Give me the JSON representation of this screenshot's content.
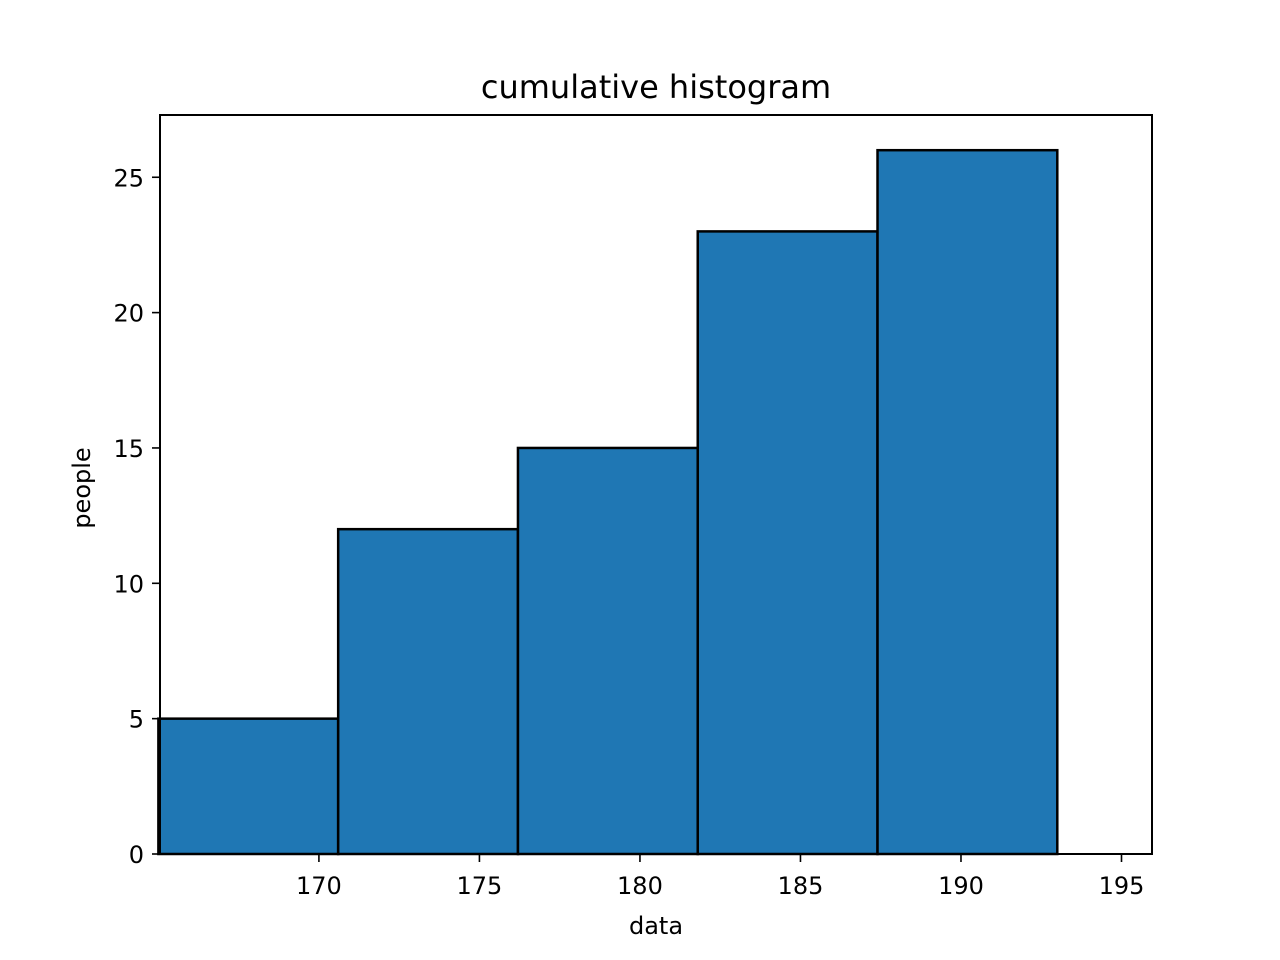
{
  "chart_data": {
    "type": "bar",
    "title": "cumulative histogram",
    "xlabel": "data",
    "ylabel": "people",
    "bins": [
      {
        "start": 165.0,
        "end": 170.6,
        "value": 5
      },
      {
        "start": 170.6,
        "end": 176.2,
        "value": 12
      },
      {
        "start": 176.2,
        "end": 181.8,
        "value": 15
      },
      {
        "start": 181.8,
        "end": 187.4,
        "value": 23
      },
      {
        "start": 187.4,
        "end": 193.0,
        "value": 26
      }
    ],
    "xlim": [
      165.05,
      195.95
    ],
    "ylim": [
      0,
      27.3
    ],
    "xticks": [
      "170",
      "175",
      "180",
      "185",
      "190",
      "195"
    ],
    "yticks": [
      "0",
      "5",
      "10",
      "15",
      "20",
      "25"
    ],
    "grid": false,
    "bar_color": "#1f77b4",
    "edge_color": "#000000"
  }
}
